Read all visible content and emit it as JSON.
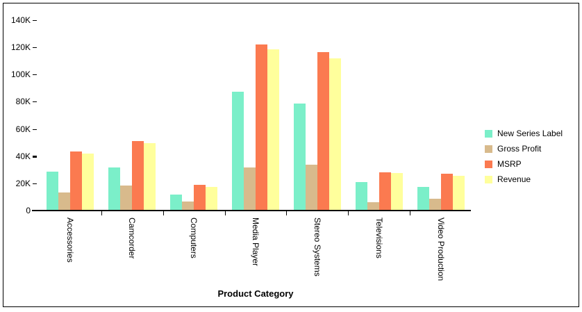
{
  "chart_data": {
    "type": "bar",
    "title": "",
    "xlabel": "Product Category",
    "ylabel": "",
    "categories": [
      "Accessories",
      "Camcorder",
      "Computers",
      "Media Player",
      "Stereo Systems",
      "Televisions",
      "Video Production"
    ],
    "series": [
      {
        "name": "New Series Label",
        "color": "#7BEFC9",
        "values": [
          28500,
          31500,
          11500,
          87500,
          78500,
          21000,
          17500
        ]
      },
      {
        "name": "Gross Profit",
        "color": "#D8BA8C",
        "values": [
          13500,
          18500,
          6500,
          31500,
          33500,
          6000,
          8500
        ]
      },
      {
        "name": "MSRP",
        "color": "#FB7A50",
        "values": [
          43500,
          51000,
          19000,
          122000,
          116500,
          28000,
          27000
        ]
      },
      {
        "name": "Revenue",
        "color": "#FFFF9C",
        "values": [
          42000,
          49500,
          17500,
          118500,
          112000,
          27500,
          25500
        ]
      }
    ],
    "ylim": [
      0,
      140000
    ],
    "ytick_step": 20000,
    "ytick_labels": [
      "0",
      "20K",
      "40K",
      "60K",
      "80K",
      "100K",
      "120K",
      "140K"
    ],
    "bold_ytick": "40K",
    "grid": false,
    "legend_position": "right",
    "axis_color": "#000000",
    "background_color": "#ffffff"
  }
}
